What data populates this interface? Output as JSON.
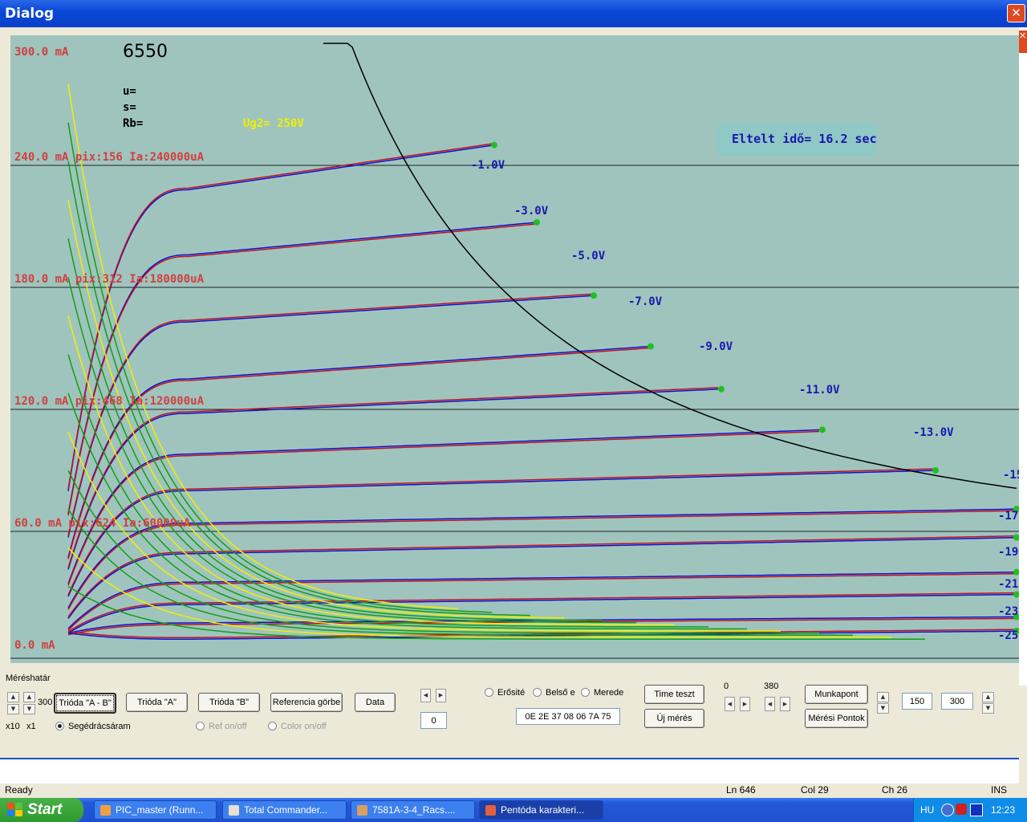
{
  "window": {
    "title": "Dialog",
    "close_glyph": "✕"
  },
  "chart_data": {
    "type": "line",
    "title": "6550",
    "tube_params": [
      "u=",
      "s=",
      "Rb="
    ],
    "ug2_label": "Ug2= 250V",
    "elapsed": "Eltelt idő= 16.2 sec",
    "y_labels": [
      "300.0 mA",
      "240.0 mA pix:156 Ia:240000uA",
      "180.0 mA pix:312 Ia:180000uA",
      "120.0 mA pix:468 Ia:120000uA",
      "60.0 mA pix:624 Ia:60000uA",
      "0.0 mA"
    ],
    "ylim": [
      0,
      300
    ],
    "y_unit": "mA",
    "grid_y": [
      60,
      120,
      180,
      240
    ],
    "curve_labels": [
      "-1.0V",
      "-3.0V",
      "-5.0V",
      "-7.0V",
      "-9.0V",
      "-11.0V",
      "-13.0V",
      "-15",
      "-17",
      "-19",
      "-21",
      "-23",
      "-25"
    ],
    "colors": {
      "background": "#9FC4BE",
      "blue": "#1010C8",
      "red": "#C01020",
      "green": "#10A010",
      "yellow": "#F0F000",
      "label_red": "#D04040",
      "label_blue": "#1818B0",
      "hyperbola": "#000000",
      "elapsed_bg": "#8FC8C4"
    },
    "series": [
      {
        "name": "-1.0V",
        "grid_voltage": -1,
        "plateau_mA": 228,
        "end_mA": 250
      },
      {
        "name": "-3.0V",
        "grid_voltage": -3,
        "plateau_mA": 196,
        "end_mA": 212
      },
      {
        "name": "-5.0V",
        "grid_voltage": -5,
        "plateau_mA": 163,
        "end_mA": 176
      },
      {
        "name": "-7.0V",
        "grid_voltage": -7,
        "plateau_mA": 135,
        "end_mA": 151
      },
      {
        "name": "-9.0V",
        "grid_voltage": -9,
        "plateau_mA": 118,
        "end_mA": 130
      },
      {
        "name": "-11.0V",
        "grid_voltage": -11,
        "plateau_mA": 98,
        "end_mA": 110
      },
      {
        "name": "-13.0V",
        "grid_voltage": -13,
        "plateau_mA": 80,
        "end_mA": 90
      },
      {
        "name": "-15",
        "grid_voltage": -15,
        "plateau_mA": 64,
        "end_mA": 71
      },
      {
        "name": "-17",
        "grid_voltage": -17,
        "plateau_mA": 49,
        "end_mA": 57
      },
      {
        "name": "-19",
        "grid_voltage": -19,
        "plateau_mA": 35,
        "end_mA": 40
      },
      {
        "name": "-21",
        "grid_voltage": -21,
        "plateau_mA": 24,
        "end_mA": 29
      },
      {
        "name": "-23",
        "grid_voltage": -23,
        "plateau_mA": 15,
        "end_mA": 18
      },
      {
        "name": "-25",
        "grid_voltage": -25,
        "plateau_mA": 7,
        "end_mA": 11
      }
    ],
    "grid_on": true
  },
  "controls": {
    "range_label": "Méréshatár",
    "range_value": "300",
    "x10": "x10",
    "x1": "x1",
    "btn_trioda_ab": "Trióda \"A - B\"",
    "btn_trioda_a": "Trióda  \"A\"",
    "btn_trioda_b": "Trióda  \"B\"",
    "btn_ref": "Referencia görbe",
    "btn_data": "Data",
    "segedracs": "Segédrácsáram",
    "ref_onoff": "Ref on/off",
    "color_onoff": "Color on/off",
    "counter_value": "0",
    "radio_erosites": "Erősité",
    "radio_belso": "Belső e",
    "radio_meredek": "Merede",
    "hex_value": "0E 2E 37 08 06 7A 75",
    "btn_time": "Time teszt",
    "btn_uj": "Új mérés",
    "left_val": "0",
    "right_val": "380",
    "btn_munkapont": "Munkapont",
    "btn_meresi": "Mérési Pontok",
    "input_150": "150",
    "input_300": "300"
  },
  "status": {
    "ready": "Ready",
    "ln": "Ln 646",
    "col": "Col 29",
    "ch": "Ch 26",
    "ins": "INS"
  },
  "taskbar": {
    "start": "Start",
    "items": [
      "PIC_master (Runn...",
      "Total Commander...",
      "7581A-3-4_Racs....",
      "Pentóda karakteri..."
    ],
    "lang": "HU",
    "time": "12:23"
  }
}
